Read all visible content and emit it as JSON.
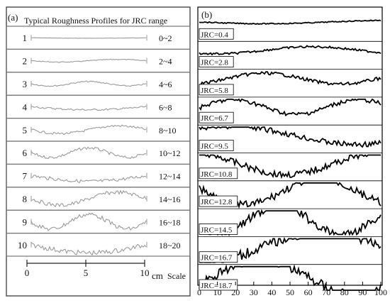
{
  "panel_a": {
    "label": "(a)",
    "title": "Typical Roughness Profiles for JRC range",
    "rows": [
      {
        "index": "1",
        "range": "0~2"
      },
      {
        "index": "2",
        "range": "2~4"
      },
      {
        "index": "3",
        "range": "4~6"
      },
      {
        "index": "4",
        "range": "6~8"
      },
      {
        "index": "5",
        "range": "8~10"
      },
      {
        "index": "6",
        "range": "10~12"
      },
      {
        "index": "7",
        "range": "12~14"
      },
      {
        "index": "8",
        "range": "14~16"
      },
      {
        "index": "9",
        "range": "16~18"
      },
      {
        "index": "10",
        "range": "18~20"
      }
    ],
    "scale": {
      "ticks": [
        "0",
        "5",
        "10"
      ],
      "unit": "cm",
      "label": "Scale"
    }
  },
  "panel_b": {
    "label": "(b)",
    "profiles": [
      {
        "label": "JRC=0.4"
      },
      {
        "label": "JRC=2.8"
      },
      {
        "label": "JRC=5.8"
      },
      {
        "label": "JRC=6.7"
      },
      {
        "label": "JRC=9.5"
      },
      {
        "label": "JRC=10.8"
      },
      {
        "label": "JRC=12.8"
      },
      {
        "label": "JRC=14.5"
      },
      {
        "label": "JRC=16.7"
      },
      {
        "label": "JRC=18.7"
      }
    ],
    "x_ticks": [
      "0",
      "10",
      "20",
      "30",
      "40",
      "50",
      "60",
      "70",
      "80",
      "90",
      "100"
    ]
  },
  "colors": {
    "line_a": "#9a9a9a",
    "line_b": "#000000",
    "frame": "#555555"
  }
}
